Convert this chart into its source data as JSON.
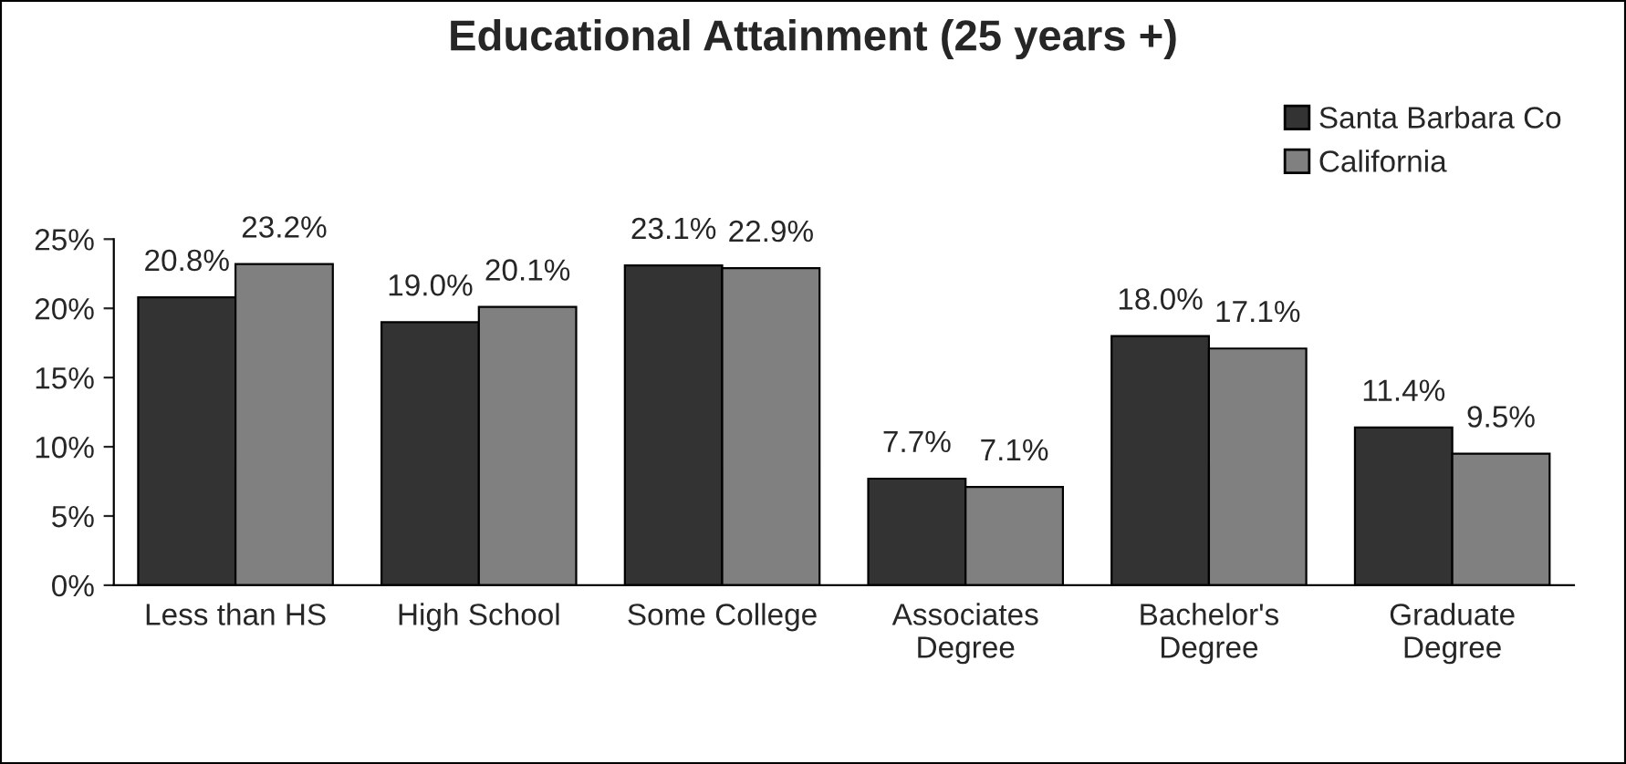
{
  "chart_data": {
    "type": "bar",
    "title": "Educational Attainment (25 years +)",
    "categories": [
      "Less than HS",
      "High School",
      "Some College",
      "Associates\nDegree",
      "Bachelor's\nDegree",
      "Graduate\nDegree"
    ],
    "series": [
      {
        "name": "Santa Barbara Co",
        "color": "#333333",
        "values": [
          20.8,
          19.0,
          23.1,
          7.7,
          18.0,
          11.4
        ],
        "value_labels": [
          "20.8%",
          "19.0%",
          "23.1%",
          "7.7%",
          "18.0%",
          "11.4%"
        ]
      },
      {
        "name": "California",
        "color": "#808080",
        "values": [
          23.2,
          20.1,
          22.9,
          7.1,
          17.1,
          9.5
        ],
        "value_labels": [
          "23.2%",
          "20.1%",
          "22.9%",
          "7.1%",
          "17.1%",
          "9.5%"
        ]
      }
    ],
    "ylim": [
      0,
      25
    ],
    "yticks": [
      {
        "value": 0,
        "label": "0%"
      },
      {
        "value": 5,
        "label": "5%"
      },
      {
        "value": 10,
        "label": "10%"
      },
      {
        "value": 15,
        "label": "15%"
      },
      {
        "value": 20,
        "label": "20%"
      },
      {
        "value": 25,
        "label": "25%"
      }
    ],
    "grid": false,
    "legend": "top right"
  }
}
